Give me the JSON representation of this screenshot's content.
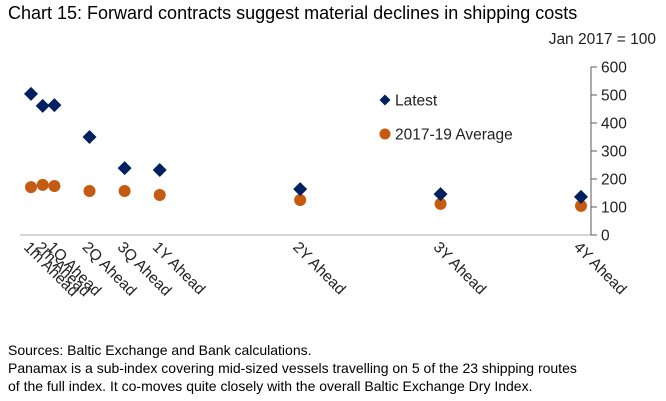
{
  "chart_data": {
    "type": "scatter",
    "title": "Chart 15:  Forward contracts suggest material declines in shipping costs",
    "units_label": "Jan 2017 = 100",
    "xlabel": "",
    "ylabel": "",
    "y_axis_side": "right",
    "ylim": [
      0,
      600
    ],
    "yticks": [
      0,
      100,
      200,
      300,
      400,
      500,
      600
    ],
    "grid": false,
    "legend_position": "upper-center",
    "x_axis": {
      "type": "time-horizon-months",
      "range_months": [
        0,
        48
      ],
      "comment": "categories placed at horizon in months; labels rotated -45 degrees"
    },
    "categories": [
      "1m Ahead",
      "2m Ahead",
      "1Q Ahead",
      "2Q Ahead",
      "3Q Ahead",
      "1Y Ahead",
      "2Y Ahead",
      "3Y Ahead",
      "4Y Ahead"
    ],
    "x_months": [
      1,
      2,
      3,
      6,
      9,
      12,
      24,
      36,
      48
    ],
    "series": [
      {
        "name": "Latest",
        "marker": "diamond",
        "color": "#002060",
        "values": [
          504,
          461,
          464,
          350,
          239,
          232,
          164,
          146,
          136
        ]
      },
      {
        "name": "2017-19 Average",
        "marker": "circle",
        "color": "#C55A11",
        "values": [
          171,
          179,
          175,
          157,
          157,
          143,
          125,
          111,
          104
        ]
      }
    ]
  },
  "footnotes": {
    "sources": "Sources:  Baltic Exchange and Bank calculations.",
    "note_line1": "Panamax is a sub-index covering mid-sized vessels travelling on 5 of the 23 shipping routes",
    "note_line2": "of the full index.  It co-moves quite closely with the overall Baltic Exchange Dry Index."
  }
}
